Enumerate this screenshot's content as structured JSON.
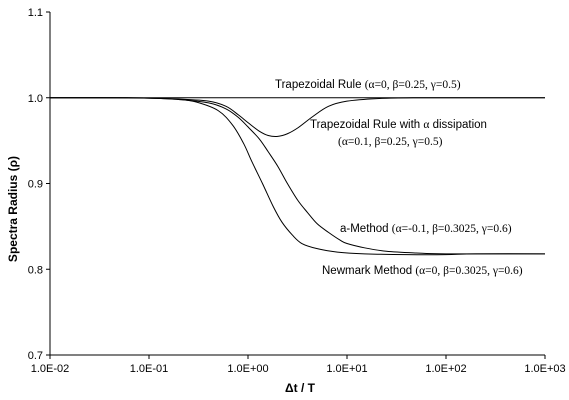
{
  "chart_data": {
    "type": "line",
    "xlabel": "Δt / T",
    "ylabel": "Spectra Radius (ρ)",
    "xscale": "log",
    "xlim": [
      0.01,
      1000
    ],
    "ylim": [
      0.7,
      1.1
    ],
    "grid": false,
    "x_ticks": [
      0.01,
      0.1,
      1,
      10,
      100,
      1000
    ],
    "x_tick_labels": [
      "1.0E-02",
      "1.0E-01",
      "1.0E+00",
      "1.0E+01",
      "1.0E+02",
      "1.0E+03"
    ],
    "y_ticks": [
      0.7,
      0.8,
      0.9,
      1.0,
      1.1
    ],
    "y_tick_labels": [
      "0.7",
      "0.8",
      "0.9",
      "1.0",
      "1.1"
    ],
    "series": [
      {
        "name": "Trapezoidal Rule (α=0, β=0.25, γ=0.5)",
        "color": "#000000",
        "points": [
          [
            0.01,
            1.0
          ],
          [
            0.1,
            1.0
          ],
          [
            1,
            1.0
          ],
          [
            10,
            1.0
          ],
          [
            100,
            1.0
          ],
          [
            1000,
            1.0
          ]
        ]
      },
      {
        "name": "Trapezoidal Rule with α dissipation (α=0.1, β=0.25, γ=0.5)",
        "color": "#000000",
        "points": [
          [
            0.01,
            1.0
          ],
          [
            0.03,
            1.0
          ],
          [
            0.1,
            0.9995
          ],
          [
            0.2,
            0.9985
          ],
          [
            0.4,
            0.996
          ],
          [
            0.6,
            0.99
          ],
          [
            0.8,
            0.98
          ],
          [
            1.0,
            0.971
          ],
          [
            1.3,
            0.961
          ],
          [
            1.6,
            0.956
          ],
          [
            2.0,
            0.955
          ],
          [
            2.5,
            0.958
          ],
          [
            3.2,
            0.965
          ],
          [
            4.5,
            0.978
          ],
          [
            6.5,
            0.99
          ],
          [
            10,
            0.996
          ],
          [
            20,
            0.999
          ],
          [
            50,
            1.0
          ],
          [
            100,
            1.0
          ],
          [
            1000,
            1.0
          ]
        ]
      },
      {
        "name": "a-Method (α=-0.1, β=0.3025, γ=0.6)",
        "color": "#000000",
        "points": [
          [
            0.01,
            1.0
          ],
          [
            0.05,
            1.0
          ],
          [
            0.1,
            0.9995
          ],
          [
            0.2,
            0.998
          ],
          [
            0.4,
            0.994
          ],
          [
            0.6,
            0.987
          ],
          [
            0.8,
            0.977
          ],
          [
            1.0,
            0.966
          ],
          [
            1.3,
            0.952
          ],
          [
            1.6,
            0.937
          ],
          [
            2.0,
            0.92
          ],
          [
            2.5,
            0.9
          ],
          [
            3.2,
            0.88
          ],
          [
            4.0,
            0.866
          ],
          [
            5.0,
            0.853
          ],
          [
            6.5,
            0.843
          ],
          [
            8.5,
            0.834
          ],
          [
            10,
            0.83
          ],
          [
            15,
            0.825
          ],
          [
            25,
            0.821
          ],
          [
            50,
            0.819
          ],
          [
            100,
            0.818
          ],
          [
            1000,
            0.818
          ]
        ]
      },
      {
        "name": "Newmark Method (α=0, β=0.3025, γ=0.6)",
        "color": "#000000",
        "points": [
          [
            0.01,
            1.0
          ],
          [
            0.05,
            1.0
          ],
          [
            0.1,
            0.9995
          ],
          [
            0.2,
            0.998
          ],
          [
            0.3,
            0.995
          ],
          [
            0.5,
            0.985
          ],
          [
            0.7,
            0.968
          ],
          [
            0.9,
            0.947
          ],
          [
            1.1,
            0.925
          ],
          [
            1.4,
            0.9
          ],
          [
            1.8,
            0.873
          ],
          [
            2.2,
            0.855
          ],
          [
            2.8,
            0.84
          ],
          [
            3.5,
            0.83
          ],
          [
            5,
            0.824
          ],
          [
            8,
            0.82
          ],
          [
            15,
            0.818
          ],
          [
            40,
            0.817
          ],
          [
            100,
            0.817
          ],
          [
            200,
            0.818
          ],
          [
            1000,
            0.818
          ]
        ]
      }
    ],
    "annotations": [
      {
        "series": 0,
        "segments": [
          {
            "t": "Trapezoidal Rule ",
            "f": "sans"
          },
          {
            "t": "(α=0, β=0.25, γ=0.5)",
            "f": "serif"
          }
        ]
      },
      {
        "series": 1,
        "segments": [
          {
            "t": "Trapezoidal Rule with ",
            "f": "sans"
          },
          {
            "t": "α",
            "f": "serif"
          },
          {
            "t": " dissipation",
            "f": "sans"
          }
        ]
      },
      {
        "series": 1,
        "segments": [
          {
            "t": "(α=0.1, β=0.25, γ=0.5)",
            "f": "serif"
          }
        ]
      },
      {
        "series": 2,
        "segments": [
          {
            "t": "a-Method ",
            "f": "sans"
          },
          {
            "t": "(α=-0.1, β=0.3025, γ=0.6)",
            "f": "serif"
          }
        ]
      },
      {
        "series": 3,
        "segments": [
          {
            "t": "Newmark Method ",
            "f": "sans"
          },
          {
            "t": "(α=0, β=0.3025, γ=0.6)",
            "f": "serif"
          }
        ]
      }
    ]
  }
}
